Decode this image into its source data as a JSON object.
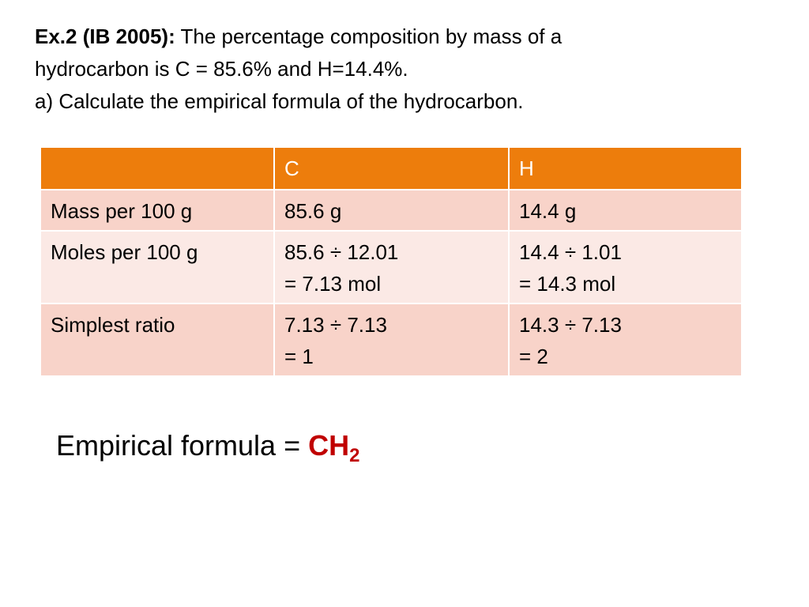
{
  "question": {
    "label": "Ex.2 (IB 2005):",
    "line1_rest": " The percentage composition by mass of a",
    "line2": "hydrocarbon is C = 85.6% and H=14.4%.",
    "line3": "a) Calculate the empirical formula of the hydrocarbon."
  },
  "table": {
    "headers": [
      "",
      "C",
      "H"
    ],
    "rows": [
      {
        "label": "Mass per 100 g",
        "c": [
          "85.6 g"
        ],
        "h": [
          "14.4 g"
        ]
      },
      {
        "label": "Moles per 100 g",
        "c": [
          "85.6 ÷ 12.01",
          "= 7.13 mol"
        ],
        "h": [
          "14.4 ÷ 1.01",
          "= 14.3 mol"
        ]
      },
      {
        "label": "Simplest ratio",
        "c": [
          "7.13 ÷ 7.13",
          "= 1"
        ],
        "h": [
          "14.3 ÷ 7.13",
          "= 2"
        ]
      }
    ]
  },
  "result": {
    "prefix": "Empirical formula = ",
    "formula_main": "CH",
    "formula_subscript": "2",
    "highlight_color": "#c00000"
  },
  "colors": {
    "header_bg": "#ed7d0c",
    "row_dark": "#f8d3c9",
    "row_light": "#fbe9e5"
  }
}
